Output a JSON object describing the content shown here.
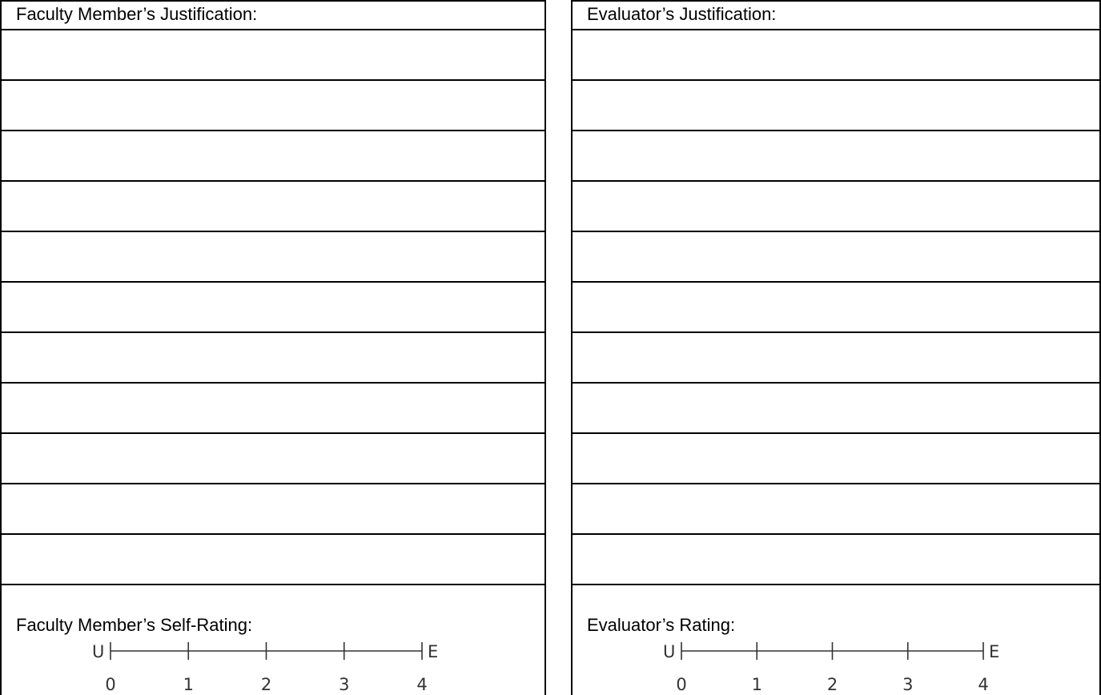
{
  "left": {
    "header": "Faculty Member’s Justification:",
    "rating_label": "Faculty Member’s Self-Rating:",
    "line_count": 11
  },
  "right": {
    "header": "Evaluator’s Justification:",
    "rating_label": "Evaluator’s Rating:",
    "line_count": 11
  },
  "scale": {
    "low_label": "U",
    "high_label": "E",
    "values": [
      "0",
      "1",
      "2",
      "3",
      "4"
    ]
  }
}
